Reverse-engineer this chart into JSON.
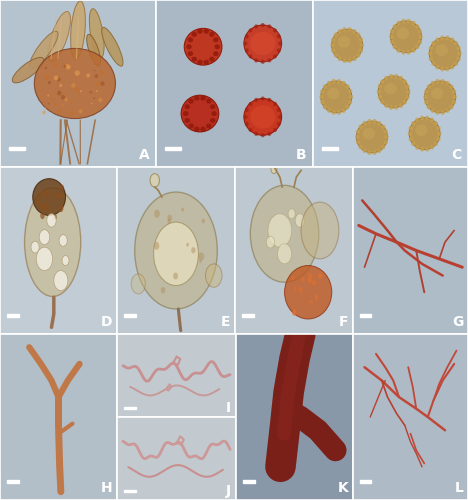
{
  "bg_colors": {
    "A": "#b0bfc9",
    "B": "#a8b8c8",
    "C": "#b8c8d5",
    "D": "#c0cad2",
    "E": "#bcc6d0",
    "F": "#bcc6d0",
    "G": "#aab8c4",
    "H": "#b0bcc6",
    "I": "#c0c8d0",
    "J": "#c0c8d0",
    "K": "#8a9dac",
    "L": "#aabac6"
  },
  "label_color": "white",
  "scalebar_color": "white",
  "panels_row0": [
    "A",
    "B",
    "C"
  ],
  "panels_row1": [
    "D",
    "E",
    "F",
    "G"
  ],
  "panels_bottom_col0": "H",
  "panels_bottom_mid_top": "I",
  "panels_bottom_mid_bot": "J",
  "panels_bottom_col2": "K",
  "panels_bottom_col3": "L"
}
